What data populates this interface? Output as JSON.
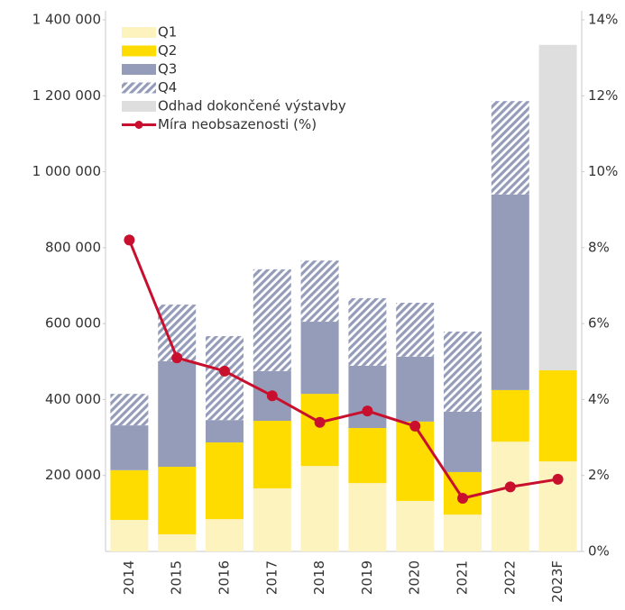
{
  "chart_data": {
    "type": "bar",
    "categories": [
      "2014",
      "2015",
      "2016",
      "2017",
      "2018",
      "2019",
      "2020",
      "2021",
      "2022",
      "2023F"
    ],
    "series": [
      {
        "name": "Q1",
        "color": "#fcf3bf",
        "values": [
          83000,
          45000,
          85000,
          166000,
          225000,
          180000,
          133000,
          97000,
          289000,
          237000
        ]
      },
      {
        "name": "Q2",
        "color": "#ffdc00",
        "values": [
          131000,
          178000,
          202000,
          178000,
          190000,
          145000,
          209000,
          112000,
          136000,
          240000
        ]
      },
      {
        "name": "Q3",
        "color": "#959cb9",
        "values": [
          118000,
          278000,
          59000,
          131000,
          190000,
          164000,
          171000,
          159000,
          515000,
          null
        ]
      },
      {
        "name": "Q4",
        "color": "#959cb9",
        "pattern": "hatch",
        "values": [
          83000,
          149000,
          221000,
          268000,
          161000,
          178000,
          142000,
          211000,
          246000,
          null
        ]
      },
      {
        "name": "Odhad dokončené výstavby",
        "color": "#dedede",
        "values": [
          null,
          null,
          null,
          null,
          null,
          null,
          null,
          null,
          null,
          857000
        ]
      },
      {
        "name": "Míra neobsazenosti (%)",
        "color": "#c8102e",
        "type": "line",
        "axis": "y2",
        "values": [
          8.2,
          5.1,
          4.75,
          4.1,
          3.4,
          3.7,
          3.3,
          1.4,
          1.7,
          1.9
        ]
      }
    ],
    "ylim": [
      0,
      1400000
    ],
    "yticks": [
      {
        "value": 200000,
        "label": "200 000"
      },
      {
        "value": 400000,
        "label": "400 000"
      },
      {
        "value": 600000,
        "label": "600 000"
      },
      {
        "value": 800000,
        "label": "800 000"
      },
      {
        "value": 1000000,
        "label": "1 000 000"
      },
      {
        "value": 1200000,
        "label": "1 200 000"
      },
      {
        "value": 1400000,
        "label": "1 400 000"
      }
    ],
    "y2lim": [
      0,
      14
    ],
    "y2ticks": [
      {
        "value": 0,
        "label": "0%"
      },
      {
        "value": 2,
        "label": "2%"
      },
      {
        "value": 4,
        "label": "4%"
      },
      {
        "value": 6,
        "label": "6%"
      },
      {
        "value": 8,
        "label": "8%"
      },
      {
        "value": 10,
        "label": "10%"
      },
      {
        "value": 12,
        "label": "12%"
      },
      {
        "value": 14,
        "label": "14%"
      }
    ],
    "legend": "upper left"
  }
}
